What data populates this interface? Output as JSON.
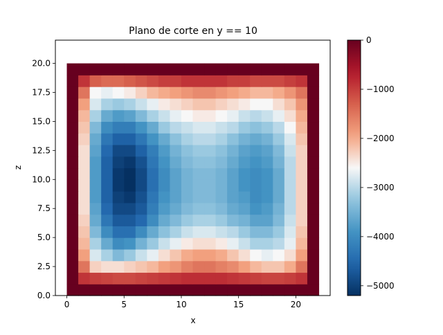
{
  "chart_data": {
    "type": "heatmap",
    "title": "Plano de corte en y == 10",
    "xlabel": "x",
    "ylabel": "z",
    "x_range": [
      -1,
      23
    ],
    "y_range": [
      0,
      22
    ],
    "x_ticks": [
      0,
      5,
      10,
      15,
      20
    ],
    "x_tick_labels": [
      "0",
      "5",
      "10",
      "15",
      "20"
    ],
    "y_ticks": [
      0,
      2.5,
      5,
      7.5,
      10,
      12.5,
      15,
      17.5,
      20
    ],
    "y_tick_labels": [
      "0.0",
      "2.5",
      "5.0",
      "7.5",
      "10.0",
      "12.5",
      "15.0",
      "17.5",
      "20.0"
    ],
    "grid": false,
    "colormap": "RdBu_r",
    "color_range": [
      -5200,
      0
    ],
    "colorbar": {
      "ticks": [
        0,
        -1000,
        -2000,
        -3000,
        -4000,
        -5000
      ],
      "tick_labels": [
        "0",
        "−1000",
        "−2000",
        "−3000",
        "−4000",
        "−5000"
      ]
    },
    "cells": {
      "x_start": 0,
      "z_start": 0,
      "cell_size": 1,
      "rows_from_bottom": [
        [
          0,
          0,
          0,
          0,
          0,
          0,
          0,
          0,
          0,
          0,
          0,
          0,
          0,
          0,
          0,
          0,
          0,
          0,
          0,
          0,
          0,
          0
        ],
        [
          0,
          -900,
          -1000,
          -1050,
          -1100,
          -1100,
          -1050,
          -1000,
          -950,
          -900,
          -850,
          -850,
          -850,
          -850,
          -900,
          -950,
          -1000,
          -1050,
          -1050,
          -1000,
          -900,
          0
        ],
        [
          0,
          -1500,
          -2300,
          -2400,
          -2400,
          -2300,
          -2200,
          -2100,
          -1900,
          -1800,
          -1600,
          -1500,
          -1500,
          -1600,
          -1700,
          -1900,
          -2100,
          -2200,
          -2200,
          -2000,
          -1500,
          0
        ],
        [
          0,
          -1900,
          -2800,
          -3100,
          -3400,
          -3200,
          -2900,
          -2700,
          -2400,
          -2200,
          -2000,
          -1900,
          -1900,
          -2000,
          -2200,
          -2400,
          -2600,
          -2700,
          -2600,
          -2400,
          -1900,
          0
        ],
        [
          0,
          -2100,
          -3100,
          -3600,
          -4000,
          -3900,
          -3500,
          -3200,
          -2900,
          -2700,
          -2500,
          -2400,
          -2400,
          -2500,
          -2700,
          -2900,
          -3100,
          -3100,
          -3000,
          -2700,
          -2100,
          0
        ],
        [
          0,
          -2200,
          -3400,
          -4000,
          -4400,
          -4400,
          -4000,
          -3600,
          -3300,
          -3100,
          -2900,
          -2800,
          -2800,
          -2900,
          -3000,
          -3200,
          -3400,
          -3400,
          -3200,
          -2800,
          -2200,
          0
        ],
        [
          0,
          -2300,
          -3600,
          -4300,
          -4700,
          -4700,
          -4500,
          -4000,
          -3600,
          -3400,
          -3200,
          -3100,
          -3100,
          -3200,
          -3400,
          -3500,
          -3700,
          -3700,
          -3400,
          -2900,
          -2300,
          0
        ],
        [
          0,
          -2400,
          -3700,
          -4500,
          -4900,
          -4900,
          -4700,
          -4200,
          -3800,
          -3600,
          -3400,
          -3300,
          -3300,
          -3400,
          -3600,
          -3700,
          -3900,
          -3800,
          -3500,
          -3000,
          -2300,
          0
        ],
        [
          0,
          -2400,
          -3800,
          -4600,
          -5000,
          -5100,
          -4800,
          -4300,
          -3900,
          -3700,
          -3500,
          -3400,
          -3400,
          -3500,
          -3700,
          -3800,
          -4000,
          -3900,
          -3600,
          -3000,
          -2300,
          0
        ],
        [
          0,
          -2400,
          -3800,
          -4600,
          -5100,
          -5200,
          -4900,
          -4400,
          -4000,
          -3700,
          -3500,
          -3400,
          -3400,
          -3500,
          -3700,
          -3900,
          -4000,
          -3900,
          -3600,
          -3000,
          -2300,
          0
        ],
        [
          0,
          -2400,
          -3800,
          -4600,
          -5100,
          -5200,
          -4900,
          -4400,
          -4000,
          -3700,
          -3500,
          -3400,
          -3400,
          -3500,
          -3700,
          -3900,
          -4000,
          -3900,
          -3600,
          -3000,
          -2300,
          0
        ],
        [
          0,
          -2400,
          -3800,
          -4600,
          -5000,
          -5100,
          -4800,
          -4300,
          -3900,
          -3600,
          -3400,
          -3300,
          -3300,
          -3400,
          -3600,
          -3800,
          -3900,
          -3800,
          -3500,
          -3000,
          -2300,
          0
        ],
        [
          0,
          -2400,
          -3700,
          -4500,
          -4900,
          -4900,
          -4600,
          -4200,
          -3800,
          -3500,
          -3300,
          -3200,
          -3200,
          -3300,
          -3500,
          -3700,
          -3800,
          -3700,
          -3400,
          -2900,
          -2300,
          0
        ],
        [
          0,
          -2300,
          -3600,
          -4300,
          -4600,
          -4600,
          -4300,
          -3900,
          -3600,
          -3300,
          -3100,
          -3000,
          -3000,
          -3100,
          -3300,
          -3500,
          -3600,
          -3500,
          -3200,
          -2800,
          -2200,
          0
        ],
        [
          0,
          -2200,
          -3400,
          -4000,
          -4200,
          -4200,
          -3900,
          -3600,
          -3200,
          -3000,
          -2900,
          -2800,
          -2800,
          -2900,
          -3000,
          -3200,
          -3300,
          -3200,
          -3000,
          -2600,
          -2100,
          0
        ],
        [
          0,
          -2100,
          -3100,
          -3600,
          -3800,
          -3700,
          -3400,
          -3100,
          -2900,
          -2700,
          -2600,
          -2500,
          -2500,
          -2600,
          -2700,
          -2900,
          -3000,
          -2900,
          -2700,
          -2400,
          -2000,
          0
        ],
        [
          0,
          -1900,
          -2800,
          -3100,
          -3200,
          -3100,
          -2900,
          -2700,
          -2500,
          -2400,
          -2300,
          -2200,
          -2200,
          -2300,
          -2400,
          -2500,
          -2600,
          -2600,
          -2400,
          -2200,
          -1800,
          0
        ],
        [
          0,
          -1500,
          -2600,
          -2700,
          -2600,
          -2500,
          -2300,
          -2100,
          -2000,
          -1900,
          -1800,
          -1700,
          -1700,
          -1800,
          -1900,
          -2000,
          -2100,
          -2100,
          -2000,
          -1800,
          -1500,
          0
        ],
        [
          0,
          -900,
          -1300,
          -1400,
          -1400,
          -1300,
          -1200,
          -1100,
          -1000,
          -1000,
          -900,
          -900,
          -900,
          -900,
          -1000,
          -1000,
          -1100,
          -1100,
          -1100,
          -1000,
          -900,
          0
        ],
        [
          0,
          0,
          0,
          0,
          0,
          0,
          0,
          0,
          0,
          0,
          0,
          0,
          0,
          0,
          0,
          0,
          0,
          0,
          0,
          0,
          0,
          0
        ]
      ]
    }
  }
}
